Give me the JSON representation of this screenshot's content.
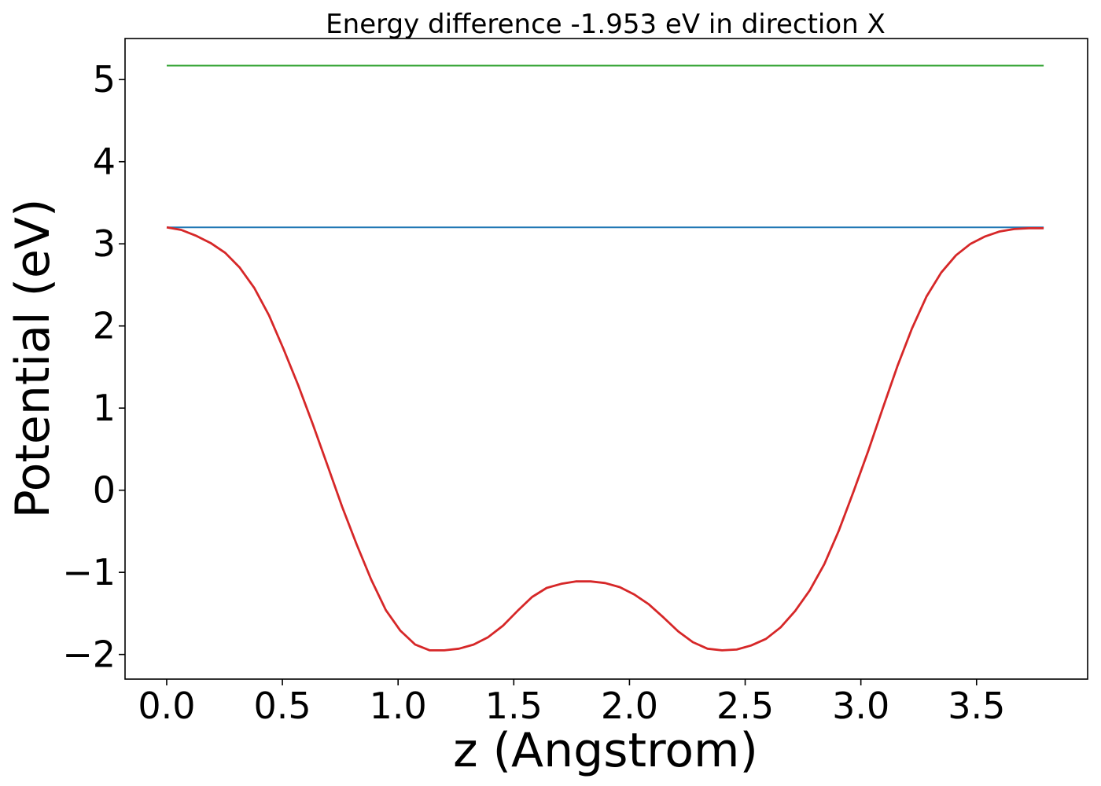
{
  "chart_data": {
    "type": "line",
    "title": "Energy difference -1.953 eV in direction X",
    "xlabel": "z (Angstrom)",
    "ylabel": "Potential (eV)",
    "xlim": [
      -0.18,
      3.98
    ],
    "ylim": [
      -2.3,
      5.5
    ],
    "xticks": [
      0.0,
      0.5,
      1.0,
      1.5,
      2.0,
      2.5,
      3.0,
      3.5
    ],
    "xtick_labels": [
      "0.0",
      "0.5",
      "1.0",
      "1.5",
      "2.0",
      "2.5",
      "3.0",
      "3.5"
    ],
    "yticks": [
      -2,
      -1,
      0,
      1,
      2,
      3,
      4,
      5
    ],
    "ytick_labels": [
      "−2",
      "−1",
      "0",
      "1",
      "2",
      "3",
      "4",
      "5"
    ],
    "grid": false,
    "series": [
      {
        "color": "#2ca02c",
        "x": [
          0.0,
          3.79
        ],
        "y": [
          5.17,
          5.17
        ]
      },
      {
        "color": "#1f77b4",
        "x": [
          0.0,
          3.79
        ],
        "y": [
          3.2,
          3.2
        ]
      },
      {
        "color": "#d62728",
        "x": [
          0.0,
          0.063,
          0.126,
          0.19,
          0.253,
          0.316,
          0.379,
          0.442,
          0.505,
          0.568,
          0.632,
          0.695,
          0.758,
          0.821,
          0.884,
          0.947,
          1.01,
          1.074,
          1.137,
          1.2,
          1.263,
          1.326,
          1.389,
          1.453,
          1.516,
          1.579,
          1.642,
          1.705,
          1.768,
          1.832,
          1.895,
          1.958,
          2.021,
          2.084,
          2.147,
          2.211,
          2.274,
          2.337,
          2.4,
          2.463,
          2.526,
          2.59,
          2.653,
          2.716,
          2.779,
          2.842,
          2.905,
          2.968,
          3.032,
          3.095,
          3.158,
          3.221,
          3.284,
          3.347,
          3.411,
          3.474,
          3.537,
          3.6,
          3.663,
          3.726,
          3.79
        ],
        "y": [
          3.2,
          3.17,
          3.1,
          3.01,
          2.89,
          2.71,
          2.46,
          2.13,
          1.72,
          1.28,
          0.8,
          0.3,
          -0.2,
          -0.66,
          -1.09,
          -1.46,
          -1.71,
          -1.88,
          -1.95,
          -1.95,
          -1.93,
          -1.88,
          -1.79,
          -1.65,
          -1.47,
          -1.3,
          -1.19,
          -1.14,
          -1.11,
          -1.11,
          -1.13,
          -1.18,
          -1.27,
          -1.39,
          -1.55,
          -1.72,
          -1.85,
          -1.93,
          -1.95,
          -1.94,
          -1.89,
          -1.81,
          -1.67,
          -1.47,
          -1.22,
          -0.9,
          -0.49,
          -0.02,
          0.48,
          1.0,
          1.51,
          1.97,
          2.36,
          2.65,
          2.86,
          3.0,
          3.09,
          3.15,
          3.18,
          3.19,
          3.19
        ]
      }
    ]
  }
}
